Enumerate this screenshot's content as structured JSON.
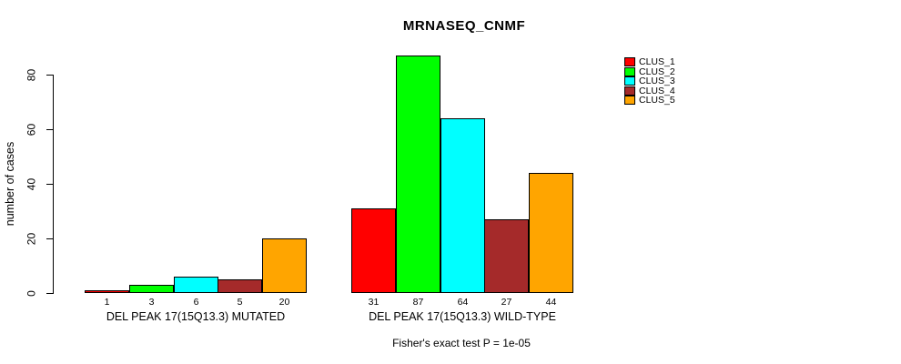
{
  "chart_data": {
    "type": "bar",
    "title": "MRNASEQ_CNMF",
    "ylabel": "number of cases",
    "ylim": [
      0,
      80
    ],
    "yticks": [
      0,
      20,
      40,
      60,
      80
    ],
    "grid": false,
    "legend_position": "top-right",
    "categories": [
      "DEL PEAK 17(15Q13.3) MUTATED",
      "DEL PEAK 17(15Q13.3) WILD-TYPE"
    ],
    "series": [
      {
        "name": "CLUS_1",
        "color": "#FF0000",
        "values": [
          1,
          31
        ]
      },
      {
        "name": "CLUS_2",
        "color": "#00FF00",
        "values": [
          3,
          87
        ]
      },
      {
        "name": "CLUS_3",
        "color": "#00FFFF",
        "values": [
          6,
          64
        ]
      },
      {
        "name": "CLUS_4",
        "color": "#A52A2A",
        "values": [
          5,
          27
        ]
      },
      {
        "name": "CLUS_5",
        "color": "#FFA500",
        "values": [
          20,
          44
        ]
      }
    ],
    "bar_value_labels": true,
    "annotation": "Fisher's exact test P = 1e-05"
  }
}
